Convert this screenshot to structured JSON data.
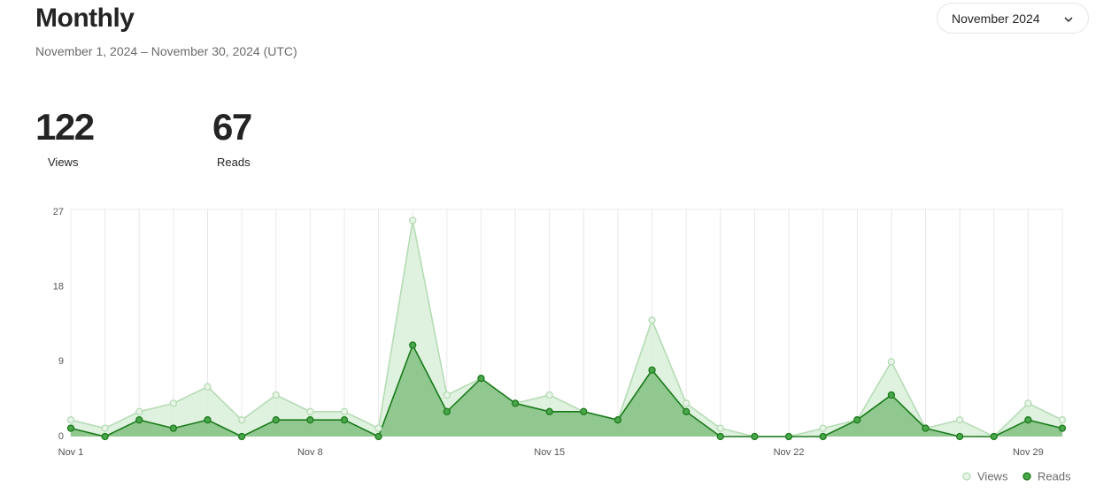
{
  "header": {
    "title": "Monthly",
    "subtitle": "November 1, 2024 – November 30, 2024 (UTC)",
    "dropdown": "November 2024"
  },
  "stats": [
    {
      "value": "122",
      "label": "Views"
    },
    {
      "value": "67",
      "label": "Reads"
    }
  ],
  "chart_data": {
    "type": "area",
    "categories": [
      "Nov 1",
      null,
      null,
      null,
      null,
      null,
      null,
      "Nov 8",
      null,
      null,
      null,
      null,
      null,
      null,
      "Nov 15",
      null,
      null,
      null,
      null,
      null,
      null,
      "Nov 22",
      null,
      null,
      null,
      null,
      null,
      null,
      "Nov 29",
      null
    ],
    "series": [
      {
        "name": "Views",
        "color": "#b5dcb5",
        "values": [
          2,
          1,
          3,
          4,
          6,
          2,
          5,
          3,
          3,
          1,
          26,
          5,
          7,
          4,
          5,
          3,
          2,
          14,
          4,
          1,
          0,
          0,
          1,
          2,
          9,
          1,
          2,
          0,
          4,
          2
        ]
      },
      {
        "name": "Reads",
        "color": "#1a7a1a",
        "values": [
          1,
          0,
          2,
          1,
          2,
          0,
          2,
          2,
          2,
          0,
          11,
          3,
          7,
          4,
          3,
          3,
          2,
          8,
          3,
          0,
          0,
          0,
          0,
          2,
          5,
          1,
          0,
          0,
          2,
          1
        ]
      }
    ],
    "ylim": [
      0,
      27
    ],
    "yticks": [
      0,
      9,
      18,
      27
    ],
    "grid": true,
    "legend": "bottom-right"
  }
}
